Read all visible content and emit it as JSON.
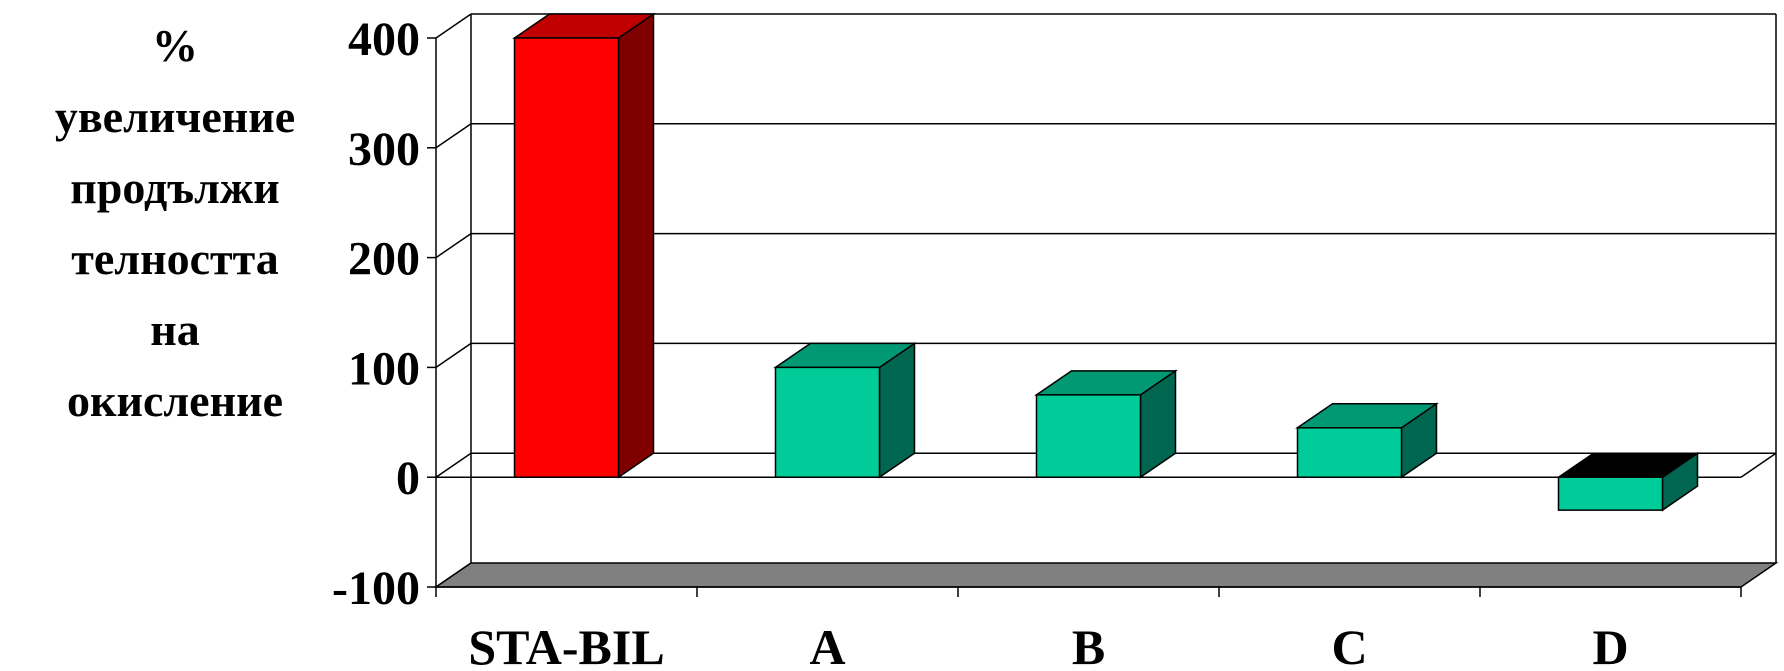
{
  "chart_data": {
    "type": "bar",
    "style": "3d",
    "categories": [
      "STA-BIL",
      "A",
      "B",
      "C",
      "D"
    ],
    "values": [
      400,
      100,
      75,
      45,
      -30
    ],
    "ylim": [
      -100,
      400
    ],
    "yticks": [
      "-100",
      "0",
      "100",
      "200",
      "300",
      "400"
    ],
    "ylabel_lines": [
      "%",
      "увеличение",
      "продължи",
      "телността",
      "на",
      "окисление"
    ],
    "grid": true,
    "colors": {
      "highlight_front": "#ff0000",
      "highlight_side": "#800000",
      "highlight_top": "#c00000",
      "bar_front": "#00cc99",
      "bar_side": "#006650",
      "bar_top": "#009973",
      "floor": "#808080"
    }
  }
}
